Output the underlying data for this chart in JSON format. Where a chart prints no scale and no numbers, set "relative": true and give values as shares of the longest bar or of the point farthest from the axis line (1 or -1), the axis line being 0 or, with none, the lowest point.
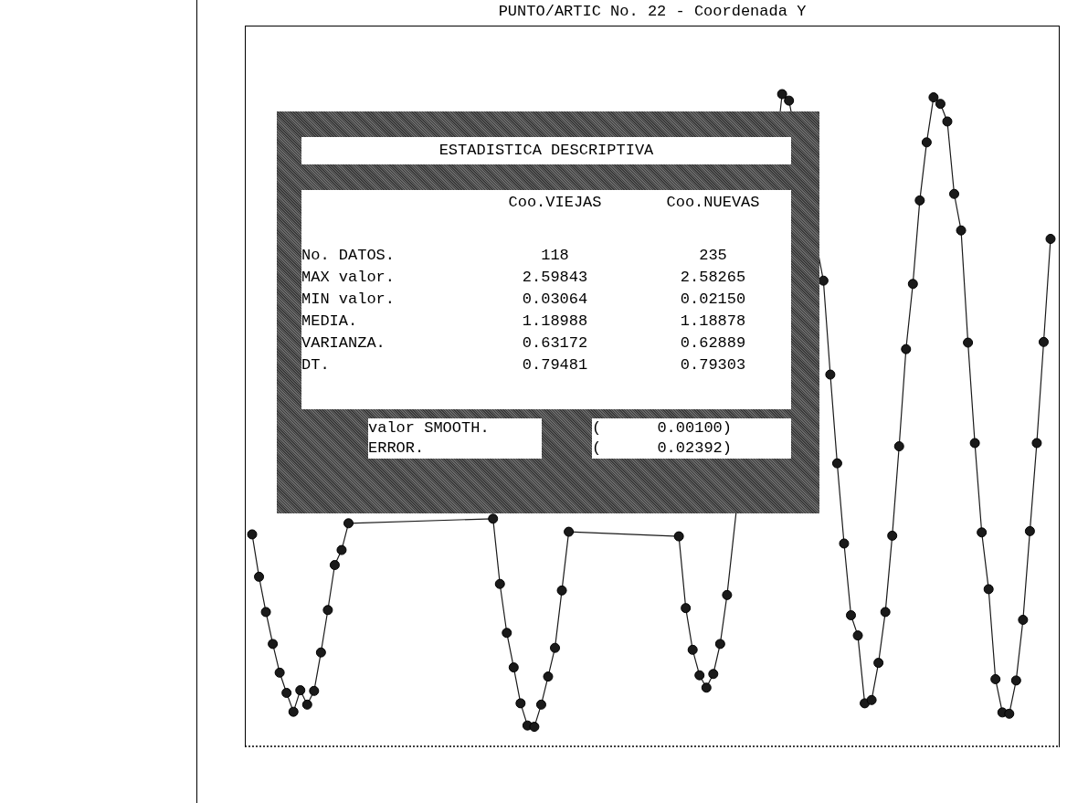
{
  "chart_data": {
    "type": "line",
    "title": "PUNTO/ARTIC No. 22  -  Coordenada Y",
    "relative": true,
    "marker": "circle",
    "line_style": "solid",
    "color": "#1a1a1a",
    "categories": [
      null,
      null,
      null,
      null,
      null,
      null,
      null,
      null,
      null,
      null,
      null,
      null,
      null,
      null,
      null,
      null,
      null,
      null,
      null,
      null,
      null,
      null,
      null,
      null,
      null,
      null,
      null,
      null,
      null,
      null,
      null,
      null,
      null,
      null,
      null,
      null,
      null,
      null,
      null,
      null,
      null,
      null,
      null,
      null,
      null,
      null,
      null,
      null,
      null,
      null,
      null,
      null,
      null,
      null,
      null,
      null,
      null,
      null,
      null,
      null,
      null,
      null,
      null,
      null,
      null,
      null,
      null,
      null,
      null,
      null,
      null,
      null,
      null,
      null,
      null,
      null,
      null,
      null,
      null,
      null,
      null,
      null,
      null,
      null,
      null,
      null,
      null,
      null,
      null,
      null,
      null,
      null,
      null,
      null,
      null,
      null,
      null,
      null,
      null,
      null,
      null,
      null,
      null,
      null,
      null,
      null,
      null,
      null,
      null,
      null,
      null,
      null,
      null,
      null,
      null,
      null,
      null
    ],
    "values": [
      0.325,
      0.26,
      0.206,
      0.157,
      0.113,
      0.082,
      0.053,
      0.086,
      0.064,
      0.085,
      0.144,
      0.209,
      0.278,
      0.301,
      0.342,
      null,
      null,
      null,
      null,
      null,
      null,
      null,
      null,
      null,
      null,
      null,
      null,
      null,
      null,
      null,
      null,
      null,
      null,
      null,
      null,
      0.349,
      0.249,
      0.174,
      0.121,
      0.066,
      0.032,
      0.03,
      0.064,
      0.107,
      0.151,
      0.239,
      0.329,
      null,
      null,
      null,
      null,
      null,
      null,
      null,
      null,
      null,
      null,
      null,
      null,
      null,
      null,
      null,
      0.322,
      0.212,
      0.148,
      0.109,
      0.09,
      0.111,
      0.157,
      0.232,
      null,
      null,
      null,
      null,
      null,
      null,
      null,
      1,
      0.99,
      null,
      null,
      null,
      null,
      0.714,
      0.57,
      0.434,
      0.311,
      0.201,
      0.17,
      0.066,
      0.071,
      0.128,
      0.206,
      0.323,
      0.46,
      0.609,
      0.709,
      0.837,
      0.926,
      0.995,
      0.985,
      0.958,
      0.847,
      0.791,
      0.619,
      0.465,
      0.328,
      0.241,
      0.103,
      0.052,
      0.05,
      0.101,
      0.194,
      0.33,
      0.465,
      0.62,
      0.778
    ],
    "annotations": [
      "ESTADISTICA DESCRIPTIVA",
      "Coo.VIEJAS",
      "Coo.NUEVAS",
      "No. DATOS.",
      "118",
      "235",
      "MAX valor.",
      "2.59843",
      "2.58265",
      "MIN valor.",
      "0.03064",
      "0.02150",
      "MEDIA.",
      "1.18988",
      "1.18878",
      "VARIANZA.",
      "0.63172",
      "0.62889",
      "DT.",
      "0.79481",
      "0.79303",
      "valor SMOOTH.",
      "(      0.00100)",
      "ERROR.",
      "(      0.02392)"
    ]
  }
}
